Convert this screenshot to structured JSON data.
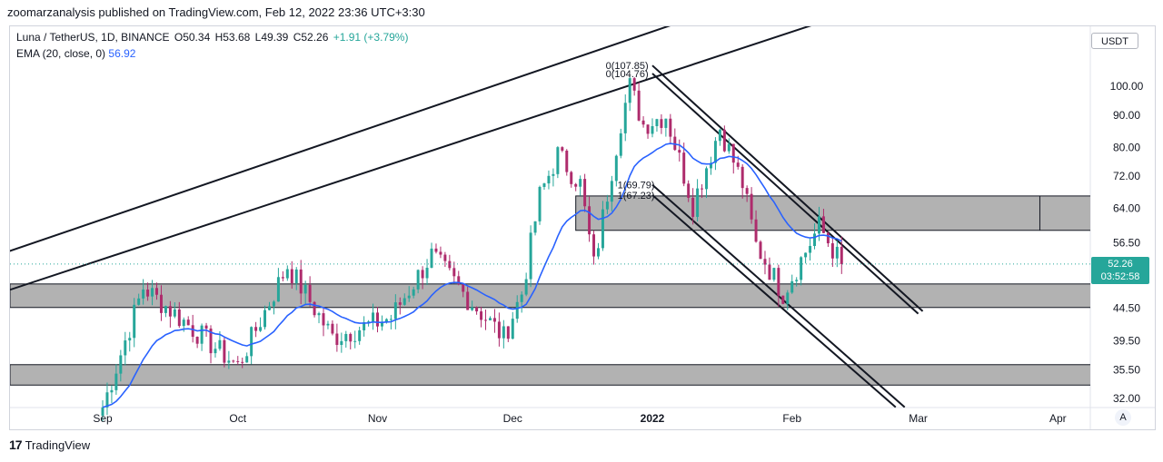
{
  "publisher_line": "zoomarzanalysis published on TradingView.com, Feb 12, 2022 23:36 UTC+3:30",
  "header": {
    "symbol": "Luna / TetherUS, 1D, BINANCE",
    "o": "O50.34",
    "h": "H53.68",
    "l": "L49.39",
    "c": "C52.26",
    "change": "+1.91 (+3.79%)"
  },
  "ema": {
    "label": "EMA (20, close, 0)",
    "value": "56.92"
  },
  "currency": "USDT",
  "last_price": {
    "value": "52.26",
    "countdown": "03:52:58"
  },
  "auto_label": "A",
  "footer_brand": "TradingView",
  "footer_logo": "17",
  "colors": {
    "up": "#26a69a",
    "down": "#ae2b6c",
    "ema": "#2962ff",
    "zone": "#b2b2b2"
  },
  "chart_data": {
    "type": "candlestick",
    "title": "Luna / TetherUS, 1D, BINANCE",
    "y_scale": "log",
    "y_ticks": [
      100.0,
      90.0,
      80.0,
      72.0,
      64.0,
      56.5,
      44.5,
      39.5,
      35.5,
      32.0
    ],
    "x_ticks": [
      "Sep",
      "Oct",
      "Nov",
      "Dec",
      "2022",
      "Feb",
      "Mar",
      "Apr"
    ],
    "ylim": [
      30.5,
      118
    ],
    "fib_labels": [
      "0(107.85)",
      "0(104.76)",
      "1(69.79)",
      "1(67.23)"
    ],
    "key_points": [
      {
        "date": "2021-09-01",
        "price": 31
      },
      {
        "date": "2021-09-10",
        "price": 48
      },
      {
        "date": "2021-10-01",
        "price": 36
      },
      {
        "date": "2021-10-12",
        "price": 52
      },
      {
        "date": "2021-10-22",
        "price": 40
      },
      {
        "date": "2021-11-04",
        "price": 43
      },
      {
        "date": "2021-11-13",
        "price": 54
      },
      {
        "date": "2021-11-20",
        "price": 47
      },
      {
        "date": "2021-11-29",
        "price": 40
      },
      {
        "date": "2021-12-03",
        "price": 47
      },
      {
        "date": "2021-12-07",
        "price": 67
      },
      {
        "date": "2021-12-11",
        "price": 78
      },
      {
        "date": "2021-12-16",
        "price": 70
      },
      {
        "date": "2021-12-19",
        "price": 52
      },
      {
        "date": "2021-12-25",
        "price": 88
      },
      {
        "date": "2021-12-27",
        "price": 100
      },
      {
        "date": "2021-12-30",
        "price": 87
      },
      {
        "date": "2022-01-04",
        "price": 90
      },
      {
        "date": "2022-01-10",
        "price": 65
      },
      {
        "date": "2022-01-16",
        "price": 86
      },
      {
        "date": "2022-01-21",
        "price": 70
      },
      {
        "date": "2022-01-24",
        "price": 56
      },
      {
        "date": "2022-01-30",
        "price": 47
      },
      {
        "date": "2022-02-07",
        "price": 60
      },
      {
        "date": "2022-02-12",
        "price": 52.26
      }
    ],
    "ema_last": 56.92
  }
}
